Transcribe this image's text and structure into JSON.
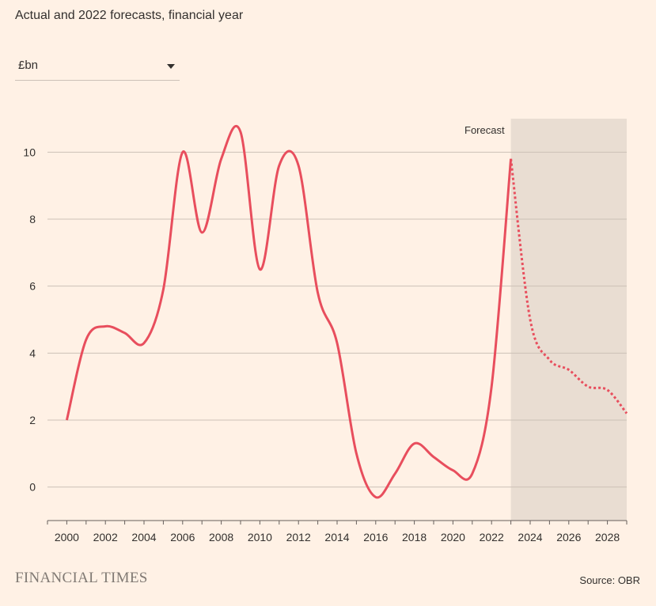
{
  "header": {
    "subtitle": "Actual and 2022 forecasts, financial year"
  },
  "unit_selector": {
    "selected": "£bn",
    "icon": "chevron-down-icon"
  },
  "footer": {
    "brand": "FINANCIAL TIMES",
    "source": "Source: OBR"
  },
  "colors": {
    "background": "#FFF1E5",
    "line": "#E84E5D",
    "forecast_shade": "#E9DDD2",
    "grid": "#CCC1B7"
  },
  "chart_data": {
    "type": "line",
    "subtitle": "Actual and 2022 forecasts, financial year",
    "ylabel": "£bn",
    "xlim": [
      1999,
      2029
    ],
    "ylim": [
      -1,
      11
    ],
    "x_ticks": [
      2000,
      2002,
      2004,
      2006,
      2008,
      2010,
      2012,
      2014,
      2016,
      2018,
      2020,
      2022,
      2024,
      2026,
      2028
    ],
    "y_ticks": [
      0,
      2,
      4,
      6,
      8,
      10
    ],
    "grid": "horizontal",
    "forecast_region": {
      "label": "Forecast",
      "from": 2023,
      "to": 2029
    },
    "series": [
      {
        "segment": "actual",
        "style": "solid",
        "x": [
          2000,
          2001,
          2002,
          2003,
          2004,
          2005,
          2006,
          2007,
          2008,
          2009,
          2010,
          2011,
          2012,
          2013,
          2014,
          2015,
          2016,
          2017,
          2018,
          2019,
          2020,
          2021,
          2022,
          2023
        ],
        "y": [
          2.0,
          4.4,
          4.8,
          4.6,
          4.3,
          5.9,
          10.0,
          7.6,
          9.8,
          10.6,
          6.5,
          9.6,
          9.6,
          5.8,
          4.3,
          1.0,
          -0.3,
          0.4,
          1.3,
          0.9,
          0.5,
          0.4,
          3.0,
          9.8
        ]
      },
      {
        "segment": "forecast",
        "style": "dashed",
        "x": [
          2023,
          2024,
          2025,
          2026,
          2027,
          2028,
          2029
        ],
        "y": [
          9.8,
          5.0,
          3.8,
          3.5,
          3.0,
          2.9,
          2.2
        ]
      }
    ]
  }
}
